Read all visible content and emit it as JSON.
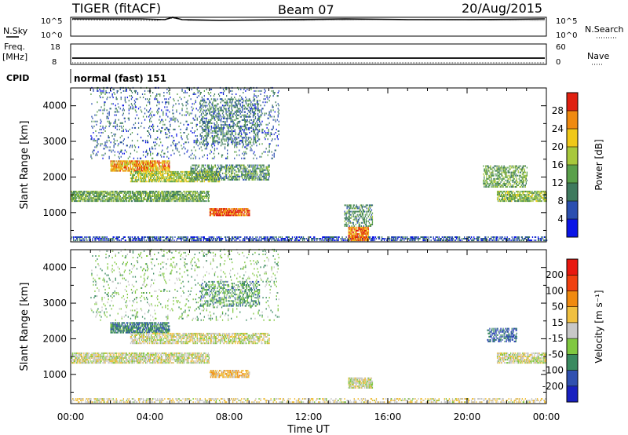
{
  "header": {
    "title": "TIGER (fitACF)",
    "beam": "Beam 07",
    "date": "20/Aug/2015"
  },
  "top_panels": {
    "nsky": {
      "label": "N.Sky",
      "ticks": [
        "10^5",
        "10^0"
      ],
      "right_label": "N.Search",
      "right_ticks": [
        "10^5",
        "10^0"
      ]
    },
    "freq": {
      "label_line1": "Freq.",
      "label_line2": "[MHz]",
      "ticks": [
        "18",
        "8"
      ],
      "right_label": "Nave",
      "right_ticks": [
        "60",
        "0"
      ]
    },
    "cpid": {
      "label": "CPID",
      "text": "normal (fast) 151"
    }
  },
  "colors": {
    "frame": "#000000"
  },
  "chart_data": [
    {
      "type": "heatmap",
      "title": "",
      "xlabel": "",
      "ylabel": "Slant Range [km]",
      "xlim": [
        0,
        24
      ],
      "ylim": [
        180,
        4500
      ],
      "y_ticks": [
        "1000",
        "2000",
        "3000",
        "4000"
      ],
      "y_tick_values": [
        1000,
        2000,
        3000,
        4000
      ],
      "colorbar": {
        "label": "Power [dB]",
        "range": [
          0,
          32
        ],
        "ticks": [
          "4",
          "8",
          "12",
          "16",
          "20",
          "24",
          "28"
        ],
        "tick_values": [
          4,
          8,
          12,
          16,
          20,
          24,
          28
        ],
        "colors": [
          "#0a14e6",
          "#2b4fb0",
          "#3f7a5e",
          "#5aa04a",
          "#a8c83c",
          "#f0c818",
          "#f08a10",
          "#e02010"
        ]
      },
      "regions": [
        {
          "t": [
            0.0,
            24.0
          ],
          "r": [
            200,
            330
          ],
          "v": 6,
          "density": 0.55
        },
        {
          "t": [
            0.0,
            7.0
          ],
          "r": [
            1300,
            1600
          ],
          "v": 14,
          "density": 0.75
        },
        {
          "t": [
            2.0,
            5.0
          ],
          "r": [
            2150,
            2450
          ],
          "v": 24,
          "density": 0.8
        },
        {
          "t": [
            3.0,
            7.5
          ],
          "r": [
            1850,
            2150
          ],
          "v": 18,
          "density": 0.7
        },
        {
          "t": [
            6.0,
            10.0
          ],
          "r": [
            1900,
            2350
          ],
          "v": 12,
          "density": 0.55
        },
        {
          "t": [
            7.0,
            9.0
          ],
          "r": [
            900,
            1100
          ],
          "v": 28,
          "density": 0.85
        },
        {
          "t": [
            6.5,
            9.5
          ],
          "r": [
            2900,
            4200
          ],
          "v": 10,
          "density": 0.3
        },
        {
          "t": [
            1.0,
            10.5
          ],
          "r": [
            2500,
            4500
          ],
          "v": 8,
          "density": 0.12
        },
        {
          "t": [
            14.0,
            15.0
          ],
          "r": [
            200,
            600
          ],
          "v": 26,
          "density": 0.85
        },
        {
          "t": [
            13.8,
            15.2
          ],
          "r": [
            600,
            1200
          ],
          "v": 12,
          "density": 0.45
        },
        {
          "t": [
            21.5,
            24.0
          ],
          "r": [
            1300,
            1600
          ],
          "v": 16,
          "density": 0.75
        },
        {
          "t": [
            20.8,
            23.0
          ],
          "r": [
            1700,
            2300
          ],
          "v": 14,
          "density": 0.5
        }
      ]
    },
    {
      "type": "heatmap",
      "title": "",
      "xlabel": "Time UT",
      "ylabel": "Slant Range [km]",
      "xlim": [
        0,
        24
      ],
      "ylim": [
        180,
        4500
      ],
      "x_ticks": [
        "00:00",
        "04:00",
        "08:00",
        "12:00",
        "16:00",
        "20:00",
        "00:00"
      ],
      "x_tick_values": [
        0,
        4,
        8,
        12,
        16,
        20,
        24
      ],
      "y_ticks": [
        "1000",
        "2000",
        "3000",
        "4000"
      ],
      "y_tick_values": [
        1000,
        2000,
        3000,
        4000
      ],
      "colorbar": {
        "label": "Velocity [m s⁻¹]",
        "range": [
          -250,
          250
        ],
        "ticks": [
          "200",
          "100",
          "50",
          "15",
          "-15",
          "-50",
          "-100",
          "-200"
        ],
        "tick_values": [
          200,
          100,
          50,
          15,
          -15,
          -50,
          -100,
          -200
        ],
        "colors": [
          "#e81810",
          "#f04010",
          "#f08a10",
          "#f0c040",
          "#c8c8c8",
          "#80c840",
          "#3a8a60",
          "#3050b0",
          "#1820c0"
        ]
      },
      "regions": [
        {
          "t": [
            0.0,
            24.0
          ],
          "r": [
            200,
            330
          ],
          "v": 20,
          "density": 0.4
        },
        {
          "t": [
            0.0,
            7.0
          ],
          "r": [
            1300,
            1600
          ],
          "v": 0,
          "density": 0.75
        },
        {
          "t": [
            2.0,
            5.0
          ],
          "r": [
            2150,
            2450
          ],
          "v": -120,
          "density": 0.75
        },
        {
          "t": [
            3.0,
            10.0
          ],
          "r": [
            1850,
            2150
          ],
          "v": 0,
          "density": 0.65
        },
        {
          "t": [
            7.0,
            9.0
          ],
          "r": [
            900,
            1100
          ],
          "v": 60,
          "density": 0.7
        },
        {
          "t": [
            6.5,
            9.5
          ],
          "r": [
            2900,
            3600
          ],
          "v": -100,
          "density": 0.35
        },
        {
          "t": [
            1.0,
            10.5
          ],
          "r": [
            2500,
            4500
          ],
          "v": -60,
          "density": 0.08
        },
        {
          "t": [
            14.0,
            15.2
          ],
          "r": [
            600,
            900
          ],
          "v": 0,
          "density": 0.8
        },
        {
          "t": [
            21.5,
            24.0
          ],
          "r": [
            1300,
            1600
          ],
          "v": 0,
          "density": 0.75
        },
        {
          "t": [
            21.0,
            22.5
          ],
          "r": [
            1900,
            2300
          ],
          "v": -150,
          "density": 0.5
        }
      ]
    }
  ]
}
